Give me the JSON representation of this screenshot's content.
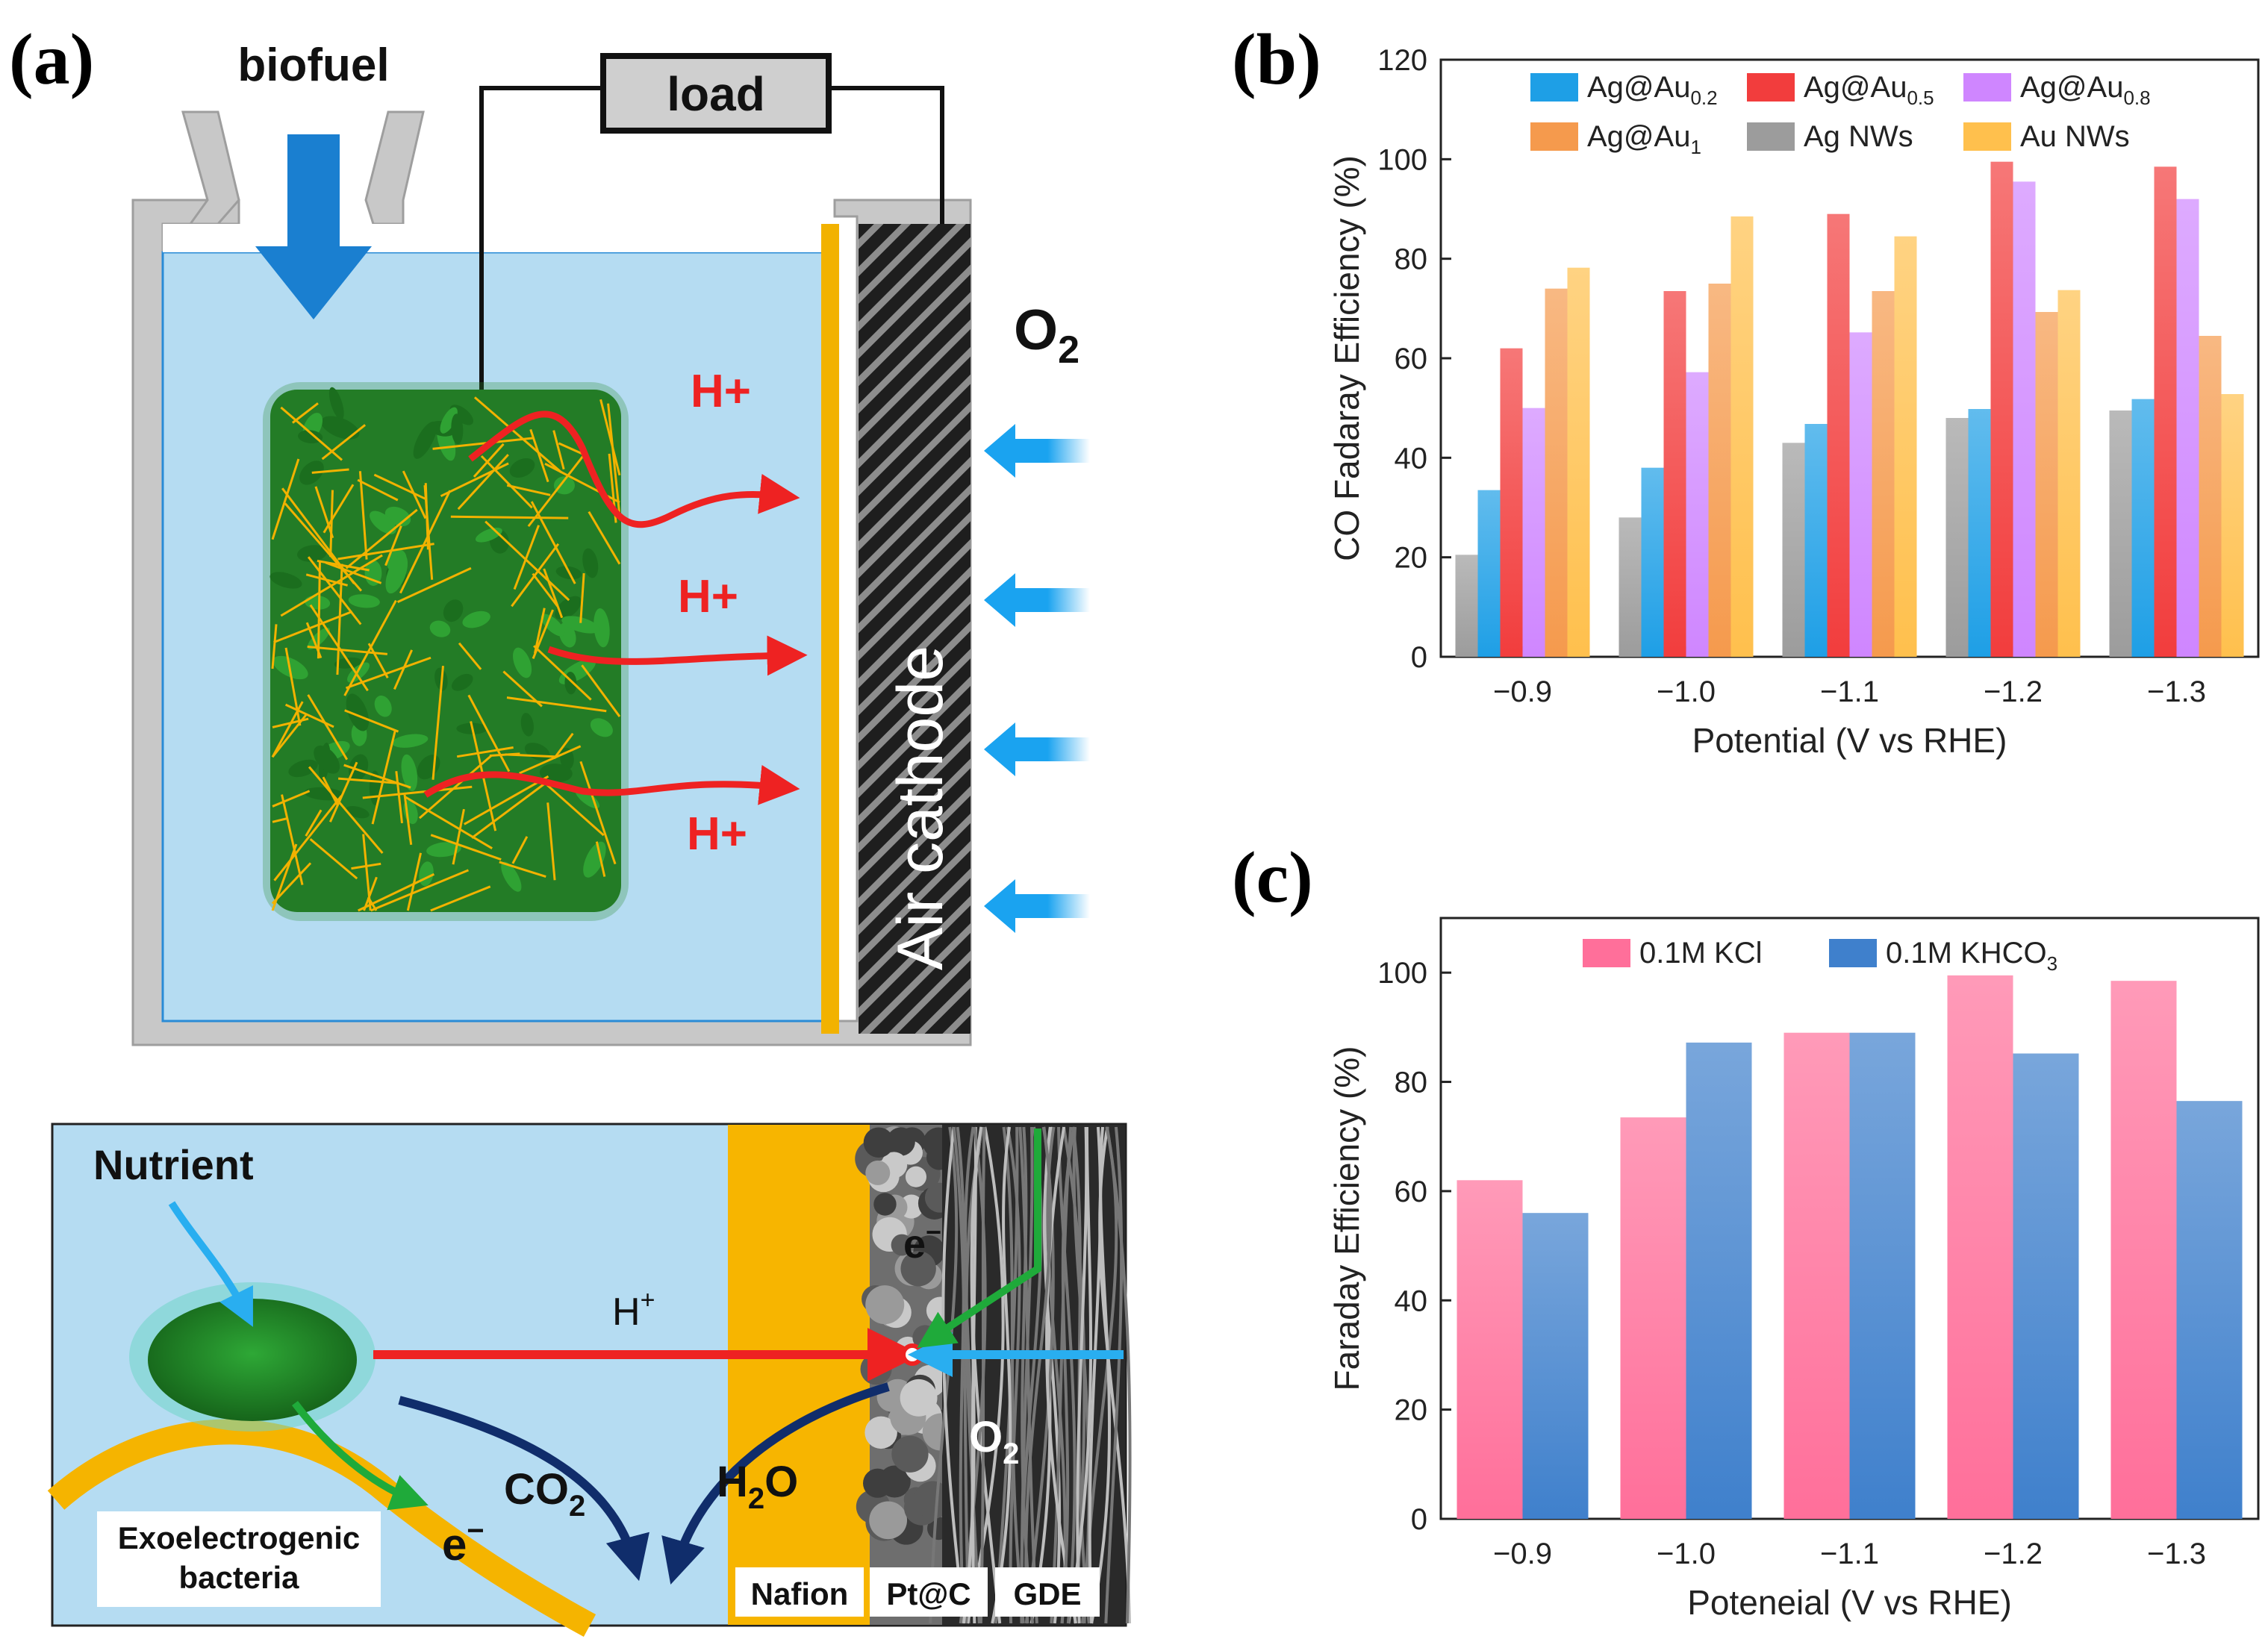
{
  "panel_labels": {
    "a": "(a)",
    "b": "(b)",
    "c": "(c)"
  },
  "colors": {
    "electrolyte": "#b5dcf2",
    "cell_frame": "#c8c8c8",
    "arrow_blue": "#1a8ad9",
    "arrow_red": "#ee2222",
    "wire": "#111111",
    "cathode_dark": "#1e1e1e",
    "gold": "#f2b200",
    "bacteria_green": "#1d7d22",
    "navy": "#102d6b",
    "green_arrow": "#1faa3a"
  },
  "diagram_top": {
    "biofuel_label": "biofuel",
    "load_label": "load",
    "o2_label_main": "O",
    "o2_label_sub": "2",
    "h_plus_labels": [
      "H+",
      "H+",
      "H+"
    ],
    "air_cathode_label": "Air cathode"
  },
  "diagram_bottom": {
    "nutrient_label": "Nutrient",
    "bacteria_label_line1": "Exoelectrogenic",
    "bacteria_label_line2": "bacteria",
    "electron_main": "e",
    "electron_sup": "−",
    "electron_label_right": "e",
    "electron_sup_right": "−",
    "h_plus_main": "H",
    "h_plus_sup": "+",
    "co2_main": "CO",
    "co2_sub": "2",
    "h2o_main": "H",
    "h2o_sub": "2",
    "h2o_end": "O",
    "o2_main": "O",
    "o2_sub": "2",
    "layer_nafion": "Nafion",
    "layer_ptc": "Pt@C",
    "layer_gde": "GDE"
  },
  "chart_data": [
    {
      "id": "b",
      "type": "bar",
      "title": "",
      "xlabel": "Potential (V vs RHE)",
      "ylabel": "CO Fadaray Efficiency (%)",
      "ylim": [
        0,
        120
      ],
      "yticks": [
        0,
        20,
        40,
        60,
        80,
        100,
        120
      ],
      "categories": [
        "−0.9",
        "−1.0",
        "−1.1",
        "−1.2",
        "−1.3"
      ],
      "legend_position": "top",
      "series": [
        {
          "name": "Ag NWs",
          "color": "#9c9c9c",
          "values": [
            20.5,
            28,
            43,
            48,
            49.5
          ]
        },
        {
          "name": "Ag@Au",
          "sub": "0.2",
          "color": "#1e9fe6",
          "values": [
            33.5,
            38,
            46.8,
            49.8,
            51.8
          ]
        },
        {
          "name": "Ag@Au",
          "sub": "0.5",
          "color": "#f23d3d",
          "values": [
            62,
            73.5,
            89,
            99.5,
            98.5
          ]
        },
        {
          "name": "Ag@Au",
          "sub": "0.8",
          "color": "#cf86ff",
          "values": [
            50,
            57.2,
            65.2,
            95.5,
            92
          ]
        },
        {
          "name": "Ag@Au",
          "sub": "1",
          "color": "#f59a4d",
          "values": [
            74,
            75,
            73.5,
            69.3,
            64.5
          ]
        },
        {
          "name": "Au NWs",
          "color": "#ffc04d",
          "values": [
            78.2,
            88.5,
            84.5,
            73.7,
            52.8
          ]
        }
      ],
      "legend_order": [
        {
          "name": "Ag@Au",
          "sub": "0.2",
          "color": "#1e9fe6"
        },
        {
          "name": "Ag@Au",
          "sub": "0.5",
          "color": "#f23d3d"
        },
        {
          "name": "Ag@Au",
          "sub": "0.8",
          "color": "#cf86ff"
        },
        {
          "name": "Ag@Au",
          "sub": "1",
          "color": "#f59a4d"
        },
        {
          "name": "Ag NWs",
          "color": "#9c9c9c"
        },
        {
          "name": "Au NWs",
          "color": "#ffc04d"
        }
      ]
    },
    {
      "id": "c",
      "type": "bar",
      "title": "",
      "xlabel": "Poteneial (V vs RHE)",
      "ylabel": "Faraday Efficiency (%)",
      "ylim": [
        0,
        110
      ],
      "yticks": [
        0,
        20,
        40,
        60,
        80,
        100
      ],
      "categories": [
        "−0.9",
        "−1.0",
        "−1.1",
        "−1.2",
        "−1.3"
      ],
      "legend_position": "top",
      "series": [
        {
          "name": "0.1M KCl",
          "color": "#ff6f9a",
          "values": [
            62,
            73.5,
            89,
            99.5,
            98.5
          ]
        },
        {
          "name": "0.1M KHCO",
          "sub": "3",
          "color": "#3f80cc",
          "values": [
            56,
            87.2,
            89,
            85.2,
            76.5
          ]
        }
      ]
    }
  ]
}
